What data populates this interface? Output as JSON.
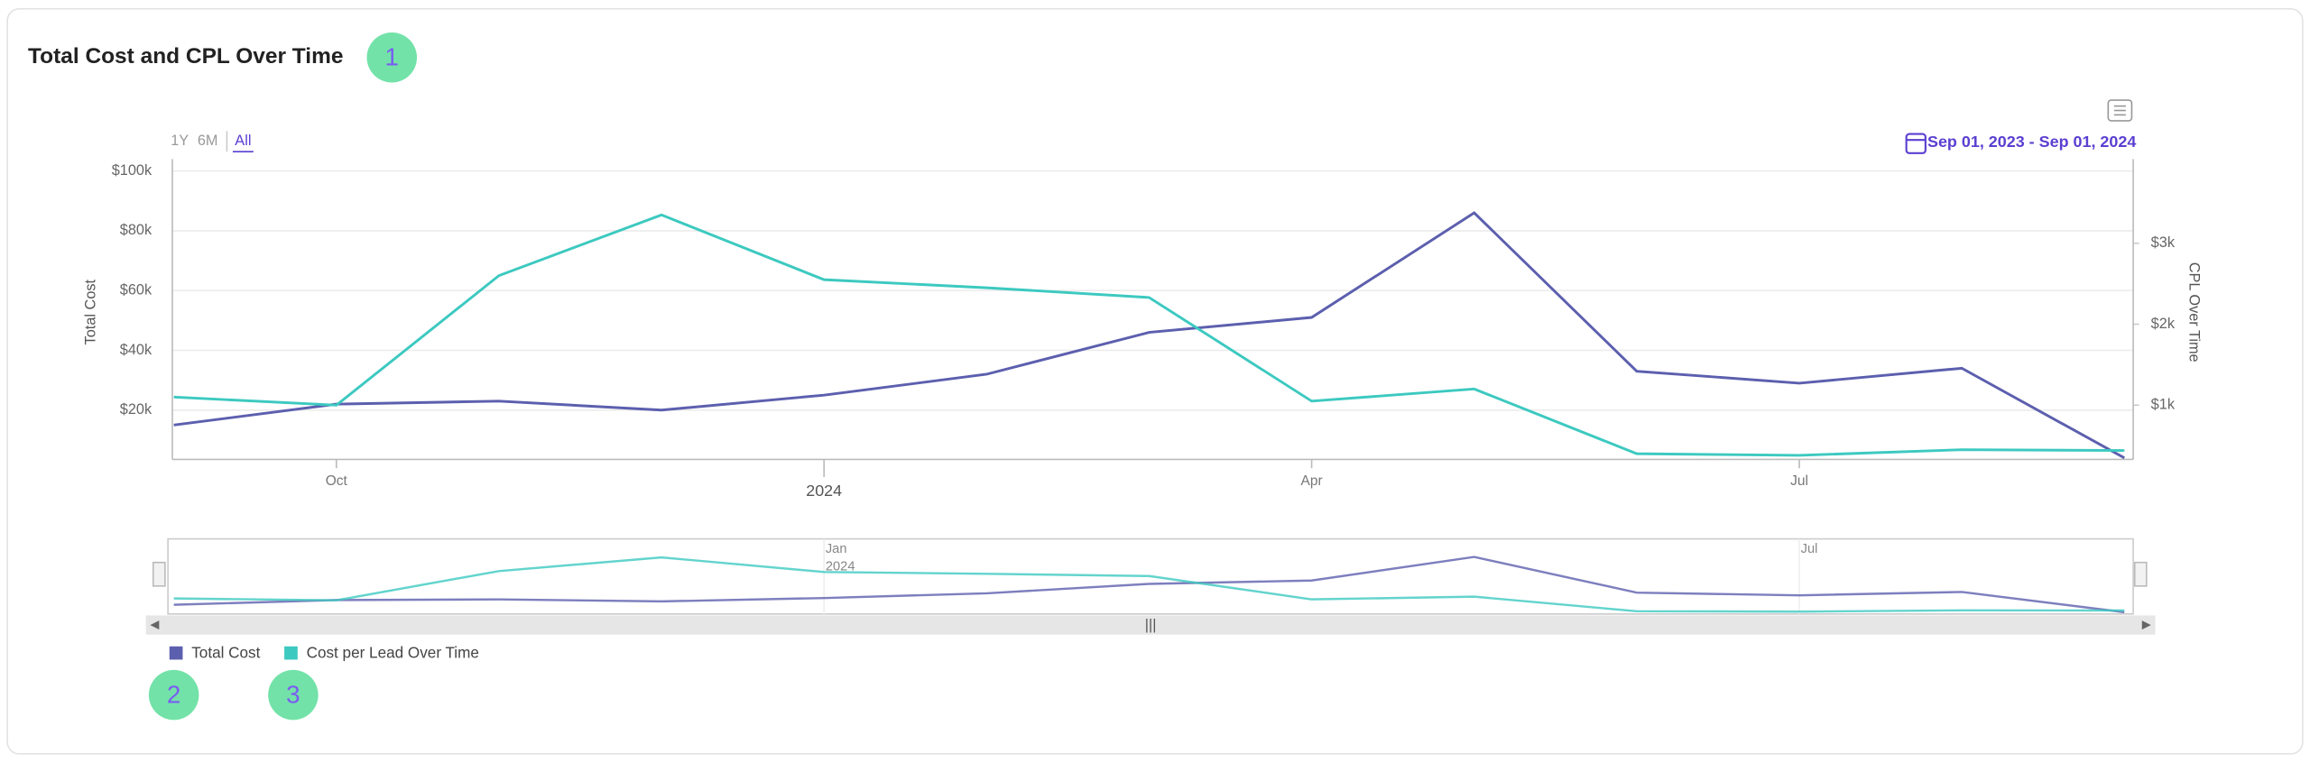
{
  "chart_data": {
    "type": "line",
    "title": "Total Cost and CPL Over Time",
    "annotations": [
      "1",
      "2",
      "3"
    ],
    "range_buttons": [
      "1Y",
      "6M",
      "All"
    ],
    "active_range": 2,
    "date_range": "Sep 01, 2023 - Sep 01, 2024",
    "x": [
      "2023-09",
      "2023-10",
      "2023-11",
      "2023-12",
      "2024-01",
      "2024-02",
      "2024-03",
      "2024-04",
      "2024-05",
      "2024-06",
      "2024-07",
      "2024-08",
      "2024-09"
    ],
    "xlim": [
      "2023-09",
      "2024-09"
    ],
    "xticks": [
      {
        "value": "2023-10",
        "label": "Oct"
      },
      {
        "value": "2024-01",
        "label": "2024"
      },
      {
        "value": "2024-04",
        "label": "Apr"
      },
      {
        "value": "2024-07",
        "label": "Jul"
      }
    ],
    "navigator_xticks": [
      {
        "value": "2024-01",
        "label": "Jan",
        "sublabel": "2024"
      },
      {
        "value": "2024-07",
        "label": "Jul"
      }
    ],
    "ylabel": "Total Cost",
    "y2label": "CPL Over Time",
    "ylim": [
      3500,
      104000
    ],
    "yticks": [
      {
        "value": 20000,
        "label": "$20k"
      },
      {
        "value": 40000,
        "label": "$40k"
      },
      {
        "value": 60000,
        "label": "$60k"
      },
      {
        "value": 80000,
        "label": "$80k"
      },
      {
        "value": 100000,
        "label": "$100k"
      }
    ],
    "y2lim": [
      330,
      4040
    ],
    "y2ticks": [
      {
        "value": 1000,
        "label": "$1k"
      },
      {
        "value": 2000,
        "label": "$2k"
      },
      {
        "value": 3000,
        "label": "$3k"
      }
    ],
    "grid": true,
    "legend": "bottom-left",
    "series": [
      {
        "name": "Total Cost",
        "color": "#5c5fae",
        "values": [
          15000,
          22000,
          23000,
          20000,
          25000,
          32000,
          46000,
          51000,
          86000,
          33000,
          29000,
          34000,
          4000
        ]
      },
      {
        "name": "Cost per Lead Over Time",
        "color": "#3cc9c0",
        "axis": "y2",
        "values": [
          1100,
          1000,
          2600,
          3350,
          2550,
          2450,
          2330,
          1050,
          1200,
          400,
          380,
          450,
          440
        ]
      }
    ]
  }
}
